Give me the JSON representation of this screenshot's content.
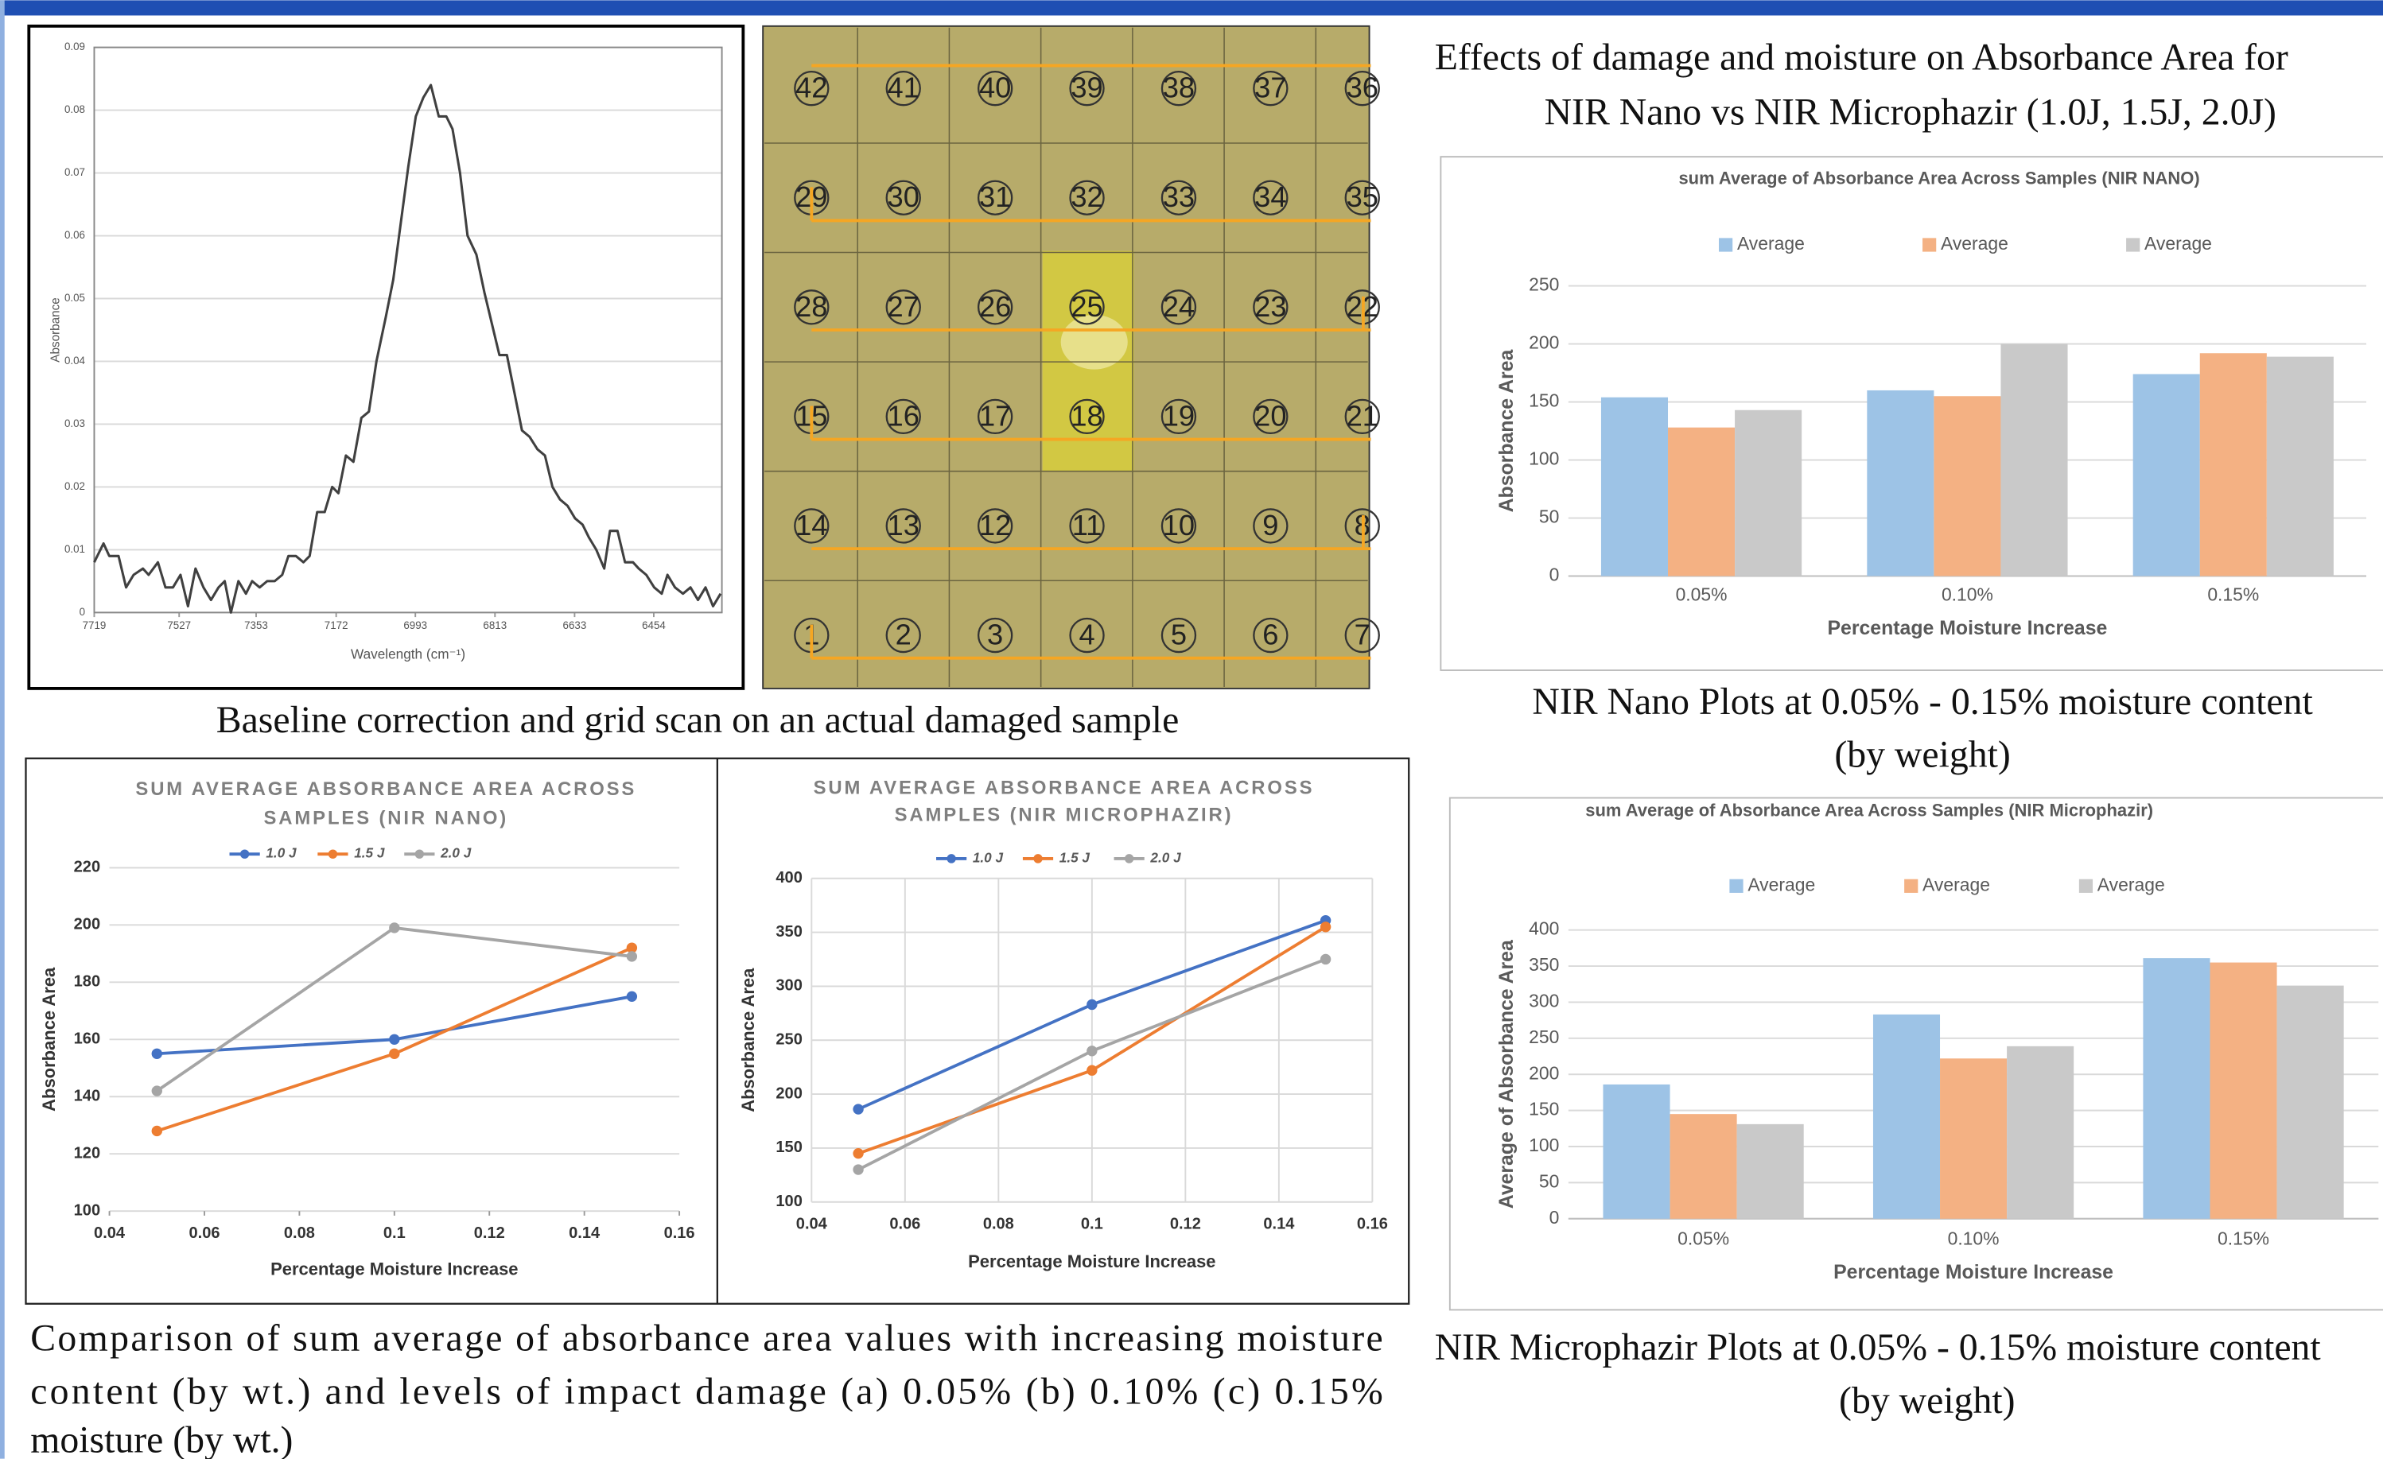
{
  "chart_data": [
    {
      "type": "line",
      "ylabel": "Absorbance",
      "xlabel": "Wavelength (cm⁻¹)",
      "x": [
        7719,
        7698,
        7685,
        7664,
        7647,
        7630,
        7609,
        7596,
        7575,
        7558,
        7541,
        7524,
        7507,
        7490,
        7472,
        7455,
        7438,
        7424,
        7410,
        7393,
        7376,
        7362,
        7345,
        7328,
        7311,
        7294,
        7280,
        7263,
        7246,
        7232,
        7215,
        7198,
        7181,
        7167,
        7150,
        7133,
        7115,
        7098,
        7081,
        7060,
        7043,
        7026,
        7009,
        6992,
        6975,
        6958,
        6940,
        6923,
        6909,
        6892,
        6875,
        6855,
        6837,
        6820,
        6803,
        6786,
        6769,
        6752,
        6735,
        6717,
        6700,
        6683,
        6666,
        6649,
        6632,
        6615,
        6601,
        6584,
        6566,
        6553,
        6536,
        6519,
        6501,
        6488,
        6471,
        6453,
        6436,
        6423,
        6406,
        6388,
        6371,
        6354,
        6337,
        6320,
        6303
      ],
      "series": [
        {
          "color": "#404040",
          "values": [
            0.008,
            0.011,
            0.009,
            0.009,
            0.004,
            0.006,
            0.007,
            0.006,
            0.008,
            0.004,
            0.004,
            0.006,
            0.001,
            0.007,
            0.004,
            0.002,
            0.004,
            0.005,
            0,
            0.005,
            0.003,
            0.005,
            0.004,
            0.005,
            0.005,
            0.006,
            0.009,
            0.009,
            0.008,
            0.009,
            0.016,
            0.016,
            0.02,
            0.019,
            0.025,
            0.024,
            0.031,
            0.032,
            0.04,
            0.047,
            0.053,
            0.062,
            0.071,
            0.079,
            0.082,
            0.084,
            0.079,
            0.079,
            0.077,
            0.07,
            0.06,
            0.057,
            0.051,
            0.046,
            0.041,
            0.041,
            0.035,
            0.029,
            0.028,
            0.026,
            0.025,
            0.02,
            0.018,
            0.017,
            0.015,
            0.014,
            0.012,
            0.01,
            0.007,
            0.013,
            0.013,
            0.008,
            0.008,
            0.007,
            0.006,
            0.004,
            0.003,
            0.006,
            0.004,
            0.003,
            0.004,
            0.002,
            0.004,
            0.001,
            0.003
          ]
        }
      ],
      "xlim": [
        7719,
        6300
      ],
      "xticks": [
        7719,
        7527,
        7353,
        7172,
        6993,
        6813,
        6633,
        6454
      ],
      "ylim": [
        0,
        0.09
      ],
      "yticks": [
        0,
        0.01,
        0.02,
        0.03,
        0.04,
        0.05,
        0.06,
        0.07,
        0.08,
        0.09
      ],
      "grid": "y",
      "markers": false
    },
    {
      "type": "line",
      "title": [
        "SUM AVERAGE ABSORBANCE AREA ACROSS",
        "SAMPLES (NIR NANO)"
      ],
      "ylabel": "Absorbance Area",
      "xlabel": "Percentage Moisture Increase",
      "x": [
        0.05,
        0.1,
        0.15
      ],
      "series": [
        {
          "name": "1.0 J",
          "color": "#4472c4",
          "values": [
            155,
            160,
            175
          ]
        },
        {
          "name": "1.5 J",
          "color": "#ed7d31",
          "values": [
            128,
            155,
            192
          ]
        },
        {
          "name": "2.0 J",
          "color": "#a5a5a5",
          "values": [
            142,
            199,
            189
          ]
        }
      ],
      "xlim": [
        0.04,
        0.16
      ],
      "xticks": [
        0.04,
        0.06,
        0.08,
        0.1,
        0.12,
        0.14,
        0.16
      ],
      "ylim": [
        100,
        220
      ],
      "yticks": [
        100,
        120,
        140,
        160,
        180,
        200,
        220
      ],
      "grid": "y",
      "markers": true
    },
    {
      "type": "line",
      "title": [
        "SUM AVERAGE ABSORBANCE AREA ACROSS",
        "SAMPLES (NIR MICROPHAZIR)"
      ],
      "ylabel": "Absorbance Area",
      "xlabel": "Percentage Moisture Increase",
      "x": [
        0.05,
        0.1,
        0.15
      ],
      "series": [
        {
          "name": "1.0 J",
          "color": "#4472c4",
          "values": [
            186,
            283,
            361
          ]
        },
        {
          "name": "1.5 J",
          "color": "#ed7d31",
          "values": [
            145,
            222,
            355
          ]
        },
        {
          "name": "2.0 J",
          "color": "#a5a5a5",
          "values": [
            130,
            240,
            325
          ]
        }
      ],
      "xlim": [
        0.04,
        0.16
      ],
      "xticks": [
        0.04,
        0.06,
        0.08,
        0.1,
        0.12,
        0.14,
        0.16
      ],
      "ylim": [
        100,
        400
      ],
      "yticks": [
        100,
        150,
        200,
        250,
        300,
        350,
        400
      ],
      "grid": "both",
      "markers": true
    },
    {
      "type": "bar",
      "title": "sum Average of Absorbance Area Across Samples (NIR NANO)",
      "ylabel": "Absorbance Area",
      "xlabel": "Percentage Moisture Increase",
      "categories": [
        "0.05%",
        "0.10%",
        "0.15%"
      ],
      "series": [
        {
          "name": "Average",
          "color": "#9dc3e6",
          "values": [
            154,
            160,
            174
          ]
        },
        {
          "name": "Average",
          "color": "#f4b183",
          "values": [
            128,
            155,
            192
          ]
        },
        {
          "name": "Average",
          "color": "#c9c9c9",
          "values": [
            143,
            200,
            189
          ]
        }
      ],
      "ylim": [
        0,
        250
      ],
      "yticks": [
        0,
        50,
        100,
        150,
        200,
        250
      ],
      "grid": "y"
    },
    {
      "type": "bar",
      "title": "sum Average of Absorbance Area Across Samples (NIR Microphazir)",
      "ylabel": "Average of Absorbance Area",
      "xlabel": "Percentage Moisture Increase",
      "categories": [
        "0.05%",
        "0.10%",
        "0.15%"
      ],
      "series": [
        {
          "name": "Average",
          "color": "#9dc3e6",
          "values": [
            186,
            283,
            361
          ]
        },
        {
          "name": "Average",
          "color": "#f4b183",
          "values": [
            145,
            222,
            355
          ]
        },
        {
          "name": "Average",
          "color": "#c9c9c9",
          "values": [
            131,
            239,
            323
          ]
        }
      ],
      "ylim": [
        0,
        400
      ],
      "yticks": [
        0,
        50,
        100,
        150,
        200,
        250,
        300,
        350,
        400
      ],
      "grid": "y"
    }
  ],
  "grid_scan": {
    "rows": [
      [
        42,
        41,
        40,
        39,
        38,
        37,
        36
      ],
      [
        29,
        30,
        31,
        32,
        33,
        34,
        35
      ],
      [
        28,
        27,
        26,
        25,
        24,
        23,
        22
      ],
      [
        15,
        16,
        17,
        18,
        19,
        20,
        21
      ],
      [
        14,
        13,
        12,
        11,
        10,
        9,
        8
      ],
      [
        1,
        2,
        3,
        4,
        5,
        6,
        7
      ]
    ]
  },
  "captions": {
    "heading": [
      "Effects of damage and moisture on Absorbance Area for",
      "NIR Nano vs NIR Microphazir (1.0J, 1.5J, 2.0J)"
    ],
    "grid_scan": "Baseline correction and grid scan on an actual damaged sample",
    "nano_bars": [
      "NIR Nano Plots at 0.05% - 0.15% moisture content",
      "(by weight)"
    ],
    "micro_bars": [
      "NIR Microphazir Plots at 0.05% - 0.15% moisture content",
      "(by weight)"
    ],
    "comparison": [
      "Comparison of sum average of absorbance area values with increasing moisture",
      "content (by wt.) and levels of impact damage (a) 0.05% (b) 0.10% (c) 0.15%",
      "moisture (by wt.)"
    ]
  }
}
